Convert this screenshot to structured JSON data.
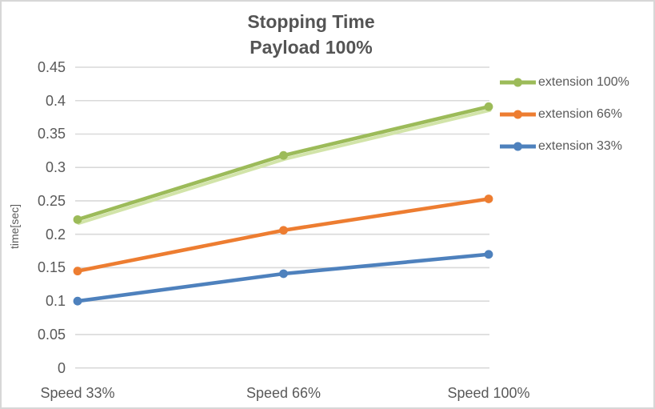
{
  "chart_data": {
    "type": "line",
    "title": "Stopping Time",
    "subtitle": "Payload 100%",
    "categories": [
      "Speed 33%",
      "Speed 66%",
      "Speed 100%"
    ],
    "series": [
      {
        "name": "extension 100%",
        "values": [
          0.222,
          0.318,
          0.391
        ],
        "color": "#9CBB59",
        "glow_color": "#D2E4A9",
        "marker": "circle"
      },
      {
        "name": "extension 66%",
        "values": [
          0.145,
          0.206,
          0.253
        ],
        "color": "#ED7D31",
        "marker": "circle"
      },
      {
        "name": "extension 33%",
        "values": [
          0.1,
          0.141,
          0.17
        ],
        "color": "#4E81BD",
        "marker": "circle"
      }
    ],
    "xlabel": "",
    "ylabel": "time[sec]",
    "ylim": [
      0,
      0.45
    ],
    "ytick_step": 0.05,
    "yticks": [
      "0",
      "0.05",
      "0.1",
      "0.15",
      "0.2",
      "0.25",
      "0.3",
      "0.35",
      "0.4",
      "0.45"
    ],
    "grid": true,
    "legend_position": "right"
  },
  "style": {
    "text_color": "#595959",
    "title_color": "#545454",
    "gridline_color": "#D9D9D9",
    "border_color": "#D7D7D7",
    "background": "#FFFFFF"
  }
}
